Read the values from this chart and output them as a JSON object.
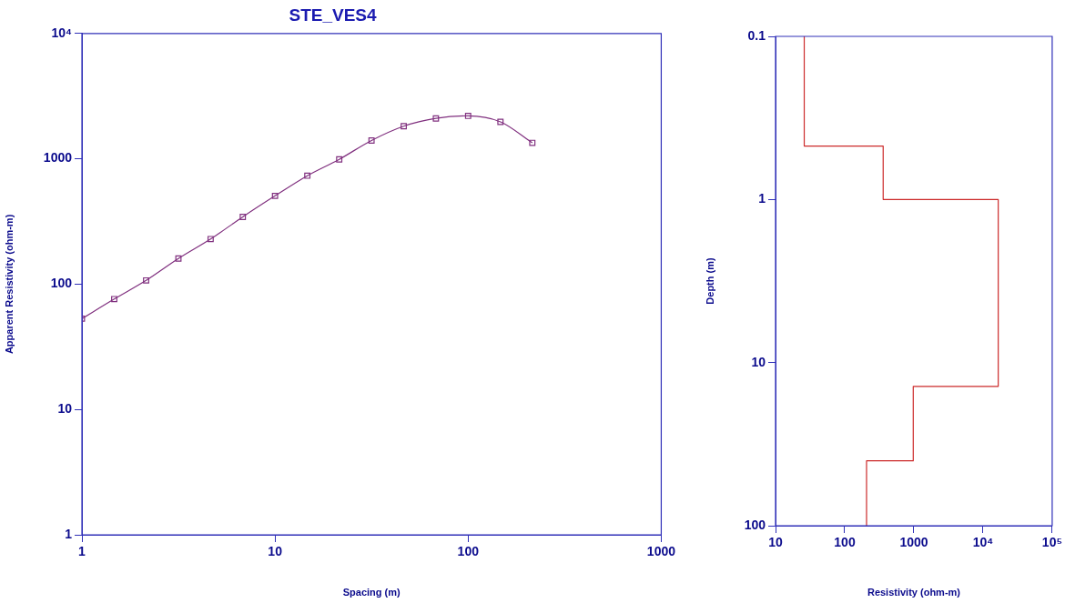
{
  "chart_data": [
    {
      "type": "line",
      "title": "STE_VES4",
      "xlabel": "Spacing (m)",
      "ylabel": "Apparent Resistivity (ohm-m)",
      "log": "xy",
      "marker": "square",
      "grid": false,
      "legend": false,
      "x": [
        1,
        1.47,
        2.15,
        3.16,
        4.64,
        6.81,
        10,
        14.7,
        21.5,
        31.6,
        46.4,
        68.1,
        100,
        147,
        215
      ],
      "series": [
        {
          "color": "#80307f",
          "values": [
            53,
            76,
            107,
            160,
            229,
            344,
            506,
            733,
            990,
            1400,
            1820,
            2100,
            2200,
            1970,
            1340
          ]
        }
      ],
      "xlim": [
        1,
        1000
      ],
      "ylim": [
        1,
        10000
      ],
      "xticks": [
        1,
        10,
        100,
        1000
      ],
      "yticks": [
        1,
        10,
        100,
        1000,
        {
          "value": 10000,
          "label": "10⁴"
        }
      ]
    },
    {
      "type": "line",
      "xlabel": "Resistivity (ohm-m)",
      "ylabel": "Depth (m)",
      "log": "xy",
      "marker": "none",
      "grid": false,
      "legend": false,
      "x": [
        26,
        26,
        360,
        360,
        16600,
        16600,
        980,
        980,
        207,
        207
      ],
      "series": [
        {
          "color": "#cc2a2a",
          "values": [
            0.1,
            0.47,
            0.47,
            1,
            1,
            14,
            14,
            40,
            40,
            100
          ]
        }
      ],
      "xlim": [
        10,
        100000
      ],
      "ylim": [
        100,
        0.1
      ],
      "xticks": [
        10,
        100,
        1000,
        {
          "value": 10000,
          "label": "10⁴"
        },
        {
          "value": 100000,
          "label": "10⁵"
        }
      ],
      "yticks": [
        0.1,
        1,
        10,
        100
      ]
    }
  ]
}
